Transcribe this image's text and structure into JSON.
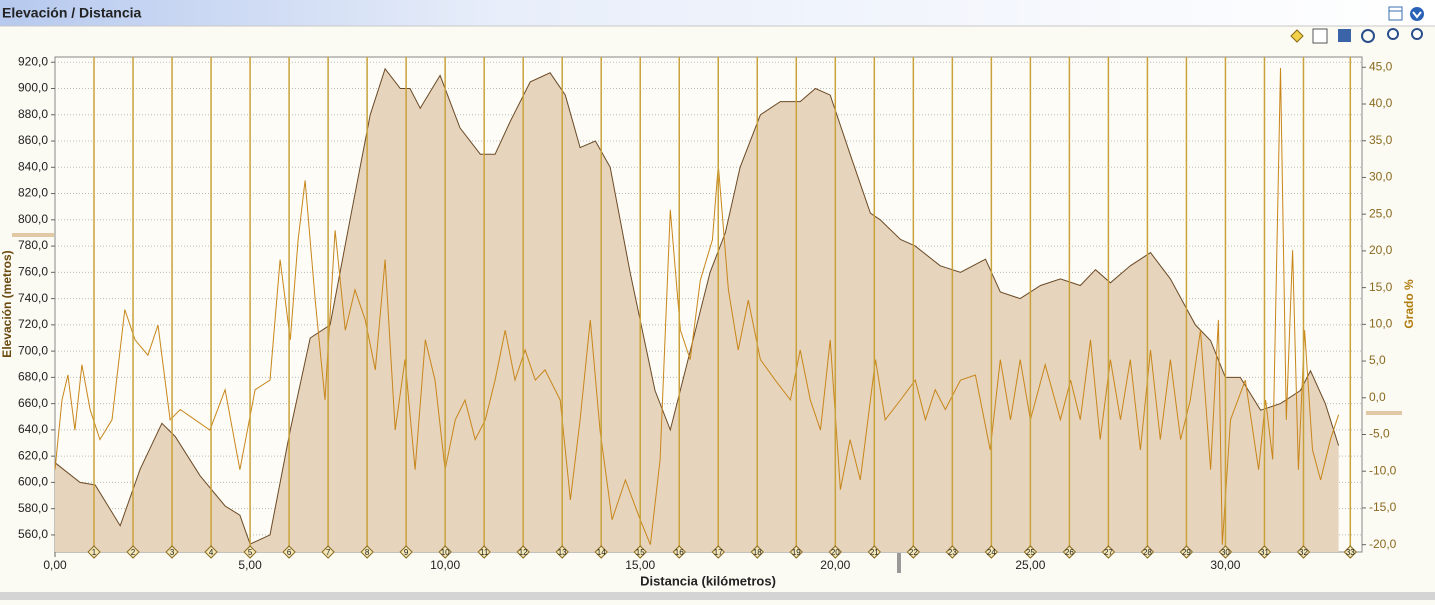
{
  "window_title": "Elevación / Distancia",
  "chart_data": {
    "type": "line",
    "ylabel": "Elevación (metros)",
    "y2label": "Grado %",
    "xlabel": "Distancia (kilómetros)",
    "xlim": [
      0,
      33.5
    ],
    "xticks": [
      {
        "value": 0,
        "label": "0,00"
      },
      {
        "value": 5,
        "label": "5,00"
      },
      {
        "value": 10,
        "label": "10,00"
      },
      {
        "value": 15,
        "label": "15,00"
      },
      {
        "value": 20,
        "label": "20,00"
      },
      {
        "value": 25,
        "label": "25,00"
      },
      {
        "value": 30,
        "label": "30,00"
      }
    ],
    "ylim": [
      547,
      924
    ],
    "yticks": [
      {
        "value": 560,
        "label": "560,0"
      },
      {
        "value": 580,
        "label": "580,0"
      },
      {
        "value": 600,
        "label": "600,0"
      },
      {
        "value": 620,
        "label": "620,0"
      },
      {
        "value": 640,
        "label": "640,0"
      },
      {
        "value": 660,
        "label": "660,0"
      },
      {
        "value": 680,
        "label": "680,0"
      },
      {
        "value": 700,
        "label": "700,0"
      },
      {
        "value": 720,
        "label": "720,0"
      },
      {
        "value": 740,
        "label": "740,0"
      },
      {
        "value": 760,
        "label": "760,0"
      },
      {
        "value": 780,
        "label": "780,0"
      },
      {
        "value": 800,
        "label": "800,0"
      },
      {
        "value": 820,
        "label": "820,0"
      },
      {
        "value": 840,
        "label": "840,0"
      },
      {
        "value": 860,
        "label": "860,0"
      },
      {
        "value": 880,
        "label": "880,0"
      },
      {
        "value": 900,
        "label": "900,0"
      },
      {
        "value": 920,
        "label": "920,0"
      }
    ],
    "y2lim": [
      -21,
      46.4
    ],
    "y2ticks": [
      {
        "value": -20,
        "label": "-20,0"
      },
      {
        "value": -15,
        "label": "-15,0"
      },
      {
        "value": -10,
        "label": "-10,0"
      },
      {
        "value": -5,
        "label": "-5,0"
      },
      {
        "value": 0,
        "label": "0,0"
      },
      {
        "value": 5,
        "label": "5,0"
      },
      {
        "value": 10,
        "label": "10,0"
      },
      {
        "value": 15,
        "label": "15,0"
      },
      {
        "value": 20,
        "label": "20,0"
      },
      {
        "value": 25,
        "label": "25,0"
      },
      {
        "value": 30,
        "label": "30,0"
      },
      {
        "value": 35,
        "label": "35,0"
      },
      {
        "value": 40,
        "label": "40,0"
      },
      {
        "value": 45,
        "label": "45,0"
      }
    ],
    "grid": true,
    "laps": {
      "x": [
        1,
        2,
        3,
        4,
        5,
        6,
        7,
        8,
        9,
        10,
        11,
        12,
        13,
        14,
        15,
        16,
        17,
        18,
        19,
        20,
        21,
        22,
        23,
        24,
        25,
        26,
        27,
        28,
        29,
        30,
        31,
        32,
        33.2
      ],
      "labels": [
        "1",
        "2",
        "3",
        "4",
        "5",
        "6",
        "7",
        "8",
        "9",
        "10",
        "11",
        "12",
        "13",
        "14",
        "15",
        "16",
        "17",
        "18",
        "19",
        "20",
        "21",
        "22",
        "23",
        "24",
        "25",
        "26",
        "27",
        "28",
        "29",
        "30",
        "31",
        "32",
        "33"
      ],
      "color": "#c9a23c"
    },
    "series": [
      {
        "name": "Elevación",
        "color": "#6b4a26",
        "fill": "#e6d4bc",
        "area": true,
        "x": [
          0,
          0.64,
          1.03,
          1.67,
          2.18,
          2.74,
          3.08,
          3.72,
          4.36,
          4.74,
          5.0,
          5.51,
          6.03,
          6.54,
          7.05,
          7.56,
          8.08,
          8.46,
          8.85,
          9.1,
          9.36,
          9.87,
          10.38,
          10.9,
          11.28,
          11.67,
          12.18,
          12.69,
          13.08,
          13.46,
          13.85,
          14.23,
          14.74,
          15.38,
          15.77,
          16.28,
          16.79,
          17.18,
          17.56,
          18.08,
          18.59,
          19.1,
          19.49,
          19.87,
          20.38,
          20.9,
          21.15,
          21.67,
          22.05,
          22.69,
          23.21,
          23.85,
          24.23,
          24.74,
          25.26,
          25.77,
          26.28,
          26.67,
          27.05,
          27.56,
          28.08,
          28.59,
          29.23,
          29.62,
          30.0,
          30.38,
          30.9,
          31.41,
          31.92,
          32.18,
          32.56,
          32.9
        ],
        "values": [
          615,
          600,
          598,
          567,
          610,
          645,
          635,
          605,
          582,
          575,
          553,
          560,
          640,
          710,
          720,
          800,
          880,
          915,
          900,
          900,
          885,
          910,
          870,
          850,
          850,
          875,
          905,
          912,
          895,
          855,
          860,
          840,
          760,
          670,
          640,
          700,
          760,
          790,
          840,
          880,
          890,
          890,
          900,
          895,
          850,
          805,
          800,
          785,
          780,
          765,
          760,
          770,
          745,
          740,
          750,
          755,
          750,
          762,
          752,
          765,
          775,
          755,
          720,
          708,
          680,
          680,
          655,
          660,
          670,
          685,
          660,
          628
        ]
      },
      {
        "name": "Grado",
        "color": "#c8861a",
        "axis": "y2",
        "x": [
          0,
          0.18,
          0.33,
          0.51,
          0.69,
          0.9,
          1.15,
          1.46,
          1.79,
          2.05,
          2.38,
          2.64,
          2.95,
          3.21,
          3.59,
          3.97,
          4.36,
          4.74,
          5.13,
          5.51,
          5.77,
          6.03,
          6.23,
          6.41,
          6.67,
          6.92,
          7.18,
          7.44,
          7.69,
          7.95,
          8.21,
          8.46,
          8.72,
          8.97,
          9.23,
          9.49,
          9.74,
          10.0,
          10.26,
          10.51,
          10.77,
          11.03,
          11.28,
          11.54,
          11.79,
          12.05,
          12.31,
          12.56,
          12.95,
          13.21,
          13.46,
          13.72,
          13.97,
          14.28,
          14.62,
          15.0,
          15.26,
          15.51,
          15.77,
          16.03,
          16.28,
          16.54,
          16.85,
          17.0,
          17.26,
          17.51,
          17.77,
          18.08,
          18.46,
          18.85,
          19.1,
          19.36,
          19.62,
          19.87,
          20.13,
          20.38,
          20.64,
          21.03,
          21.28,
          21.67,
          22.05,
          22.31,
          22.56,
          22.82,
          23.21,
          23.59,
          23.97,
          24.23,
          24.49,
          24.74,
          25.0,
          25.38,
          25.77,
          26.03,
          26.28,
          26.54,
          26.79,
          27.05,
          27.31,
          27.56,
          27.82,
          28.08,
          28.33,
          28.59,
          28.85,
          29.1,
          29.36,
          29.62,
          29.82,
          29.92,
          30.13,
          30.51,
          30.85,
          31.03,
          31.21,
          31.41,
          31.56,
          31.72,
          31.87,
          32.03,
          32.23,
          32.44,
          32.69,
          32.9
        ],
        "values": [
          -9.8,
          -0.3,
          3.1,
          -4.4,
          4.5,
          -1.6,
          -5.7,
          -3,
          12,
          7.9,
          5.8,
          9.9,
          -3,
          -1.6,
          -3,
          -4.4,
          1.1,
          -9.8,
          1.1,
          2.4,
          18.8,
          7.9,
          21.5,
          29.6,
          13.3,
          -0.3,
          22.8,
          9.2,
          14.7,
          10.6,
          3.8,
          18.8,
          -4.4,
          5.2,
          -9.8,
          7.9,
          2.4,
          -9.8,
          -3,
          -0.3,
          -5.7,
          -3,
          2.4,
          9.2,
          2.4,
          6.5,
          2.4,
          3.8,
          -0.3,
          -13.9,
          -3,
          10.6,
          -4.4,
          -16.6,
          -11.2,
          -16.6,
          -20,
          -8.4,
          25.6,
          9.2,
          5.2,
          16,
          21.5,
          31.7,
          14.7,
          6.5,
          13.3,
          5.2,
          2.4,
          -0.3,
          6.5,
          -0.3,
          -4.4,
          7.9,
          -12.5,
          -5.7,
          -11.2,
          5.2,
          -3,
          -0.3,
          2.4,
          -3,
          1.1,
          -1.6,
          2.4,
          3.1,
          -7.1,
          5.2,
          -3,
          5.2,
          -3,
          4.5,
          -3,
          2.4,
          -3,
          7.9,
          -5.7,
          5.2,
          -3,
          5.2,
          -7.1,
          6.5,
          -5.7,
          5.2,
          -5.7,
          -0.3,
          9.2,
          -9.8,
          10.6,
          -20,
          -3,
          2.4,
          -9.8,
          -0.3,
          -8.4,
          44.9,
          -3,
          20.1,
          -9.8,
          9.2,
          -7.1,
          -11.2,
          -5.7,
          -2.3
        ]
      }
    ]
  }
}
